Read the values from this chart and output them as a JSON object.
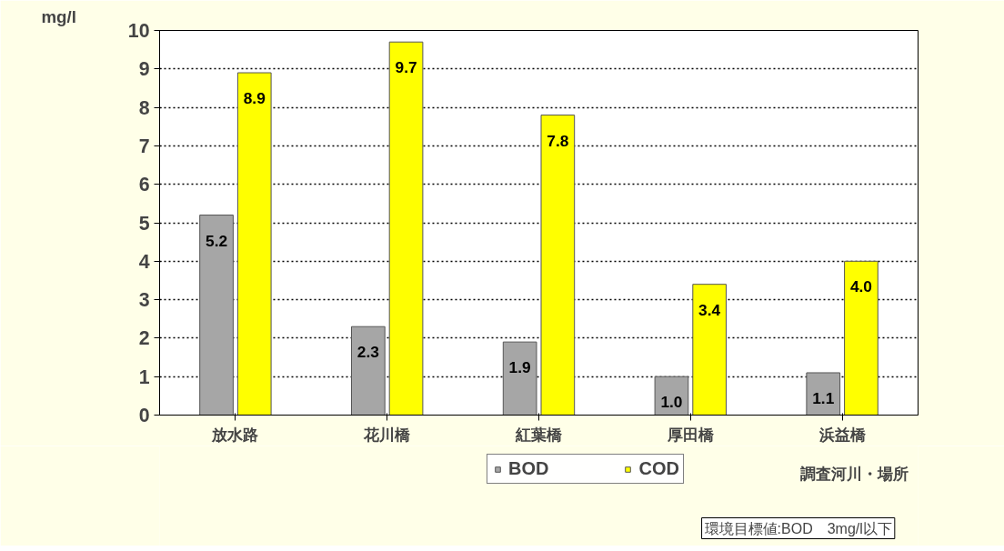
{
  "chart_data": {
    "type": "bar",
    "categories": [
      "放水路",
      "花川橋",
      "紅葉橋",
      "厚田橋",
      "浜益橋"
    ],
    "series": [
      {
        "name": "BOD",
        "color": "#a6a6a6",
        "values": [
          5.2,
          2.3,
          1.9,
          1.0,
          1.1
        ],
        "value_labels": [
          "5.2",
          "2.3",
          "1.9",
          "1.0",
          "1.1"
        ]
      },
      {
        "name": "COD",
        "color": "#ffff00",
        "values": [
          8.9,
          9.7,
          7.8,
          3.4,
          4.0
        ],
        "value_labels": [
          "8.9",
          "9.7",
          "7.8",
          "3.4",
          "4.0"
        ]
      }
    ],
    "ylabel": "mg/l",
    "xlabel": "調査河川・場所",
    "annotations": [
      "環境目標値:BOD　3mg/l以下"
    ],
    "ylim": [
      0,
      10
    ],
    "yticks": [
      0,
      1,
      2,
      3,
      4,
      5,
      6,
      7,
      8,
      9,
      10
    ],
    "grid": "y",
    "legend": "bottom"
  }
}
